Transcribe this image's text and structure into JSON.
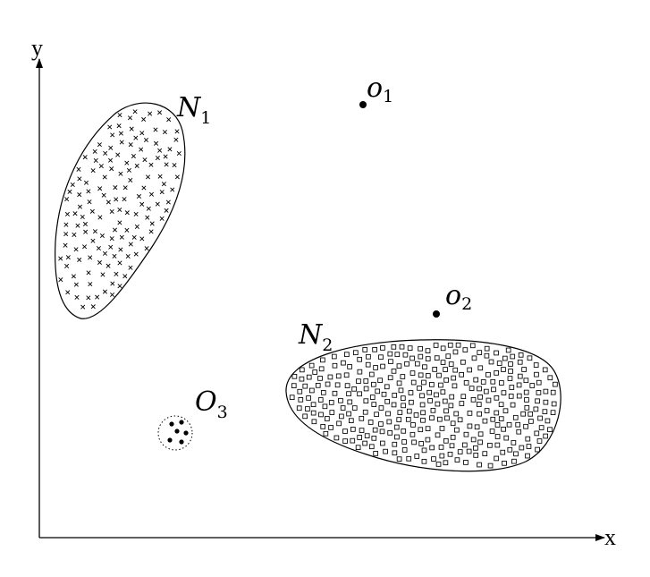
{
  "axes": {
    "x_label": "x",
    "y_label": "y"
  },
  "labels": {
    "n1": {
      "letter": "N",
      "sub": "1"
    },
    "n2": {
      "letter": "N",
      "sub": "2"
    },
    "o1": {
      "letter": "o",
      "sub": "1"
    },
    "o2": {
      "letter": "o",
      "sub": "2"
    },
    "o3": {
      "letter": "O",
      "sub": "3"
    }
  },
  "clusters": {
    "n1": {
      "marker": "cross-marker",
      "count": 150
    },
    "n2": {
      "marker": "square-marker",
      "count": 380
    },
    "o3": {
      "marker": "dot-marker",
      "count": 6
    }
  },
  "colors": {
    "ink": "#000000",
    "background": "#ffffff"
  }
}
